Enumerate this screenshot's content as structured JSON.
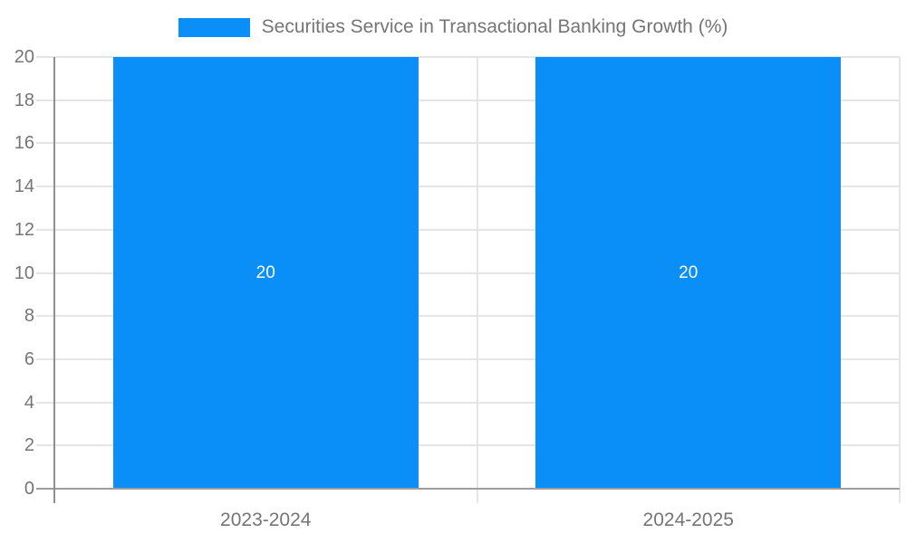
{
  "legend": {
    "label": "Securities Service in Transactional Banking Growth (%)"
  },
  "colors": {
    "bar": "#0A8FF9",
    "label_text": "#757575",
    "value_label_text": "#ffffff",
    "gridline": "#E5E5E5",
    "axis": "#9E9E9E",
    "y_axis_line": "#8F8F8F"
  },
  "chart_data": {
    "type": "bar",
    "title": "Securities Service in Transactional Banking Growth (%)",
    "categories": [
      "2023-2024",
      "2024-2025"
    ],
    "series": [
      {
        "name": "Securities Service in Transactional Banking Growth (%)",
        "color": "#0A8FF9",
        "values": [
          20,
          20
        ]
      }
    ],
    "bar_value_labels": [
      "20",
      "20"
    ],
    "xlabel": "",
    "ylabel": "",
    "ylim": [
      0,
      20
    ],
    "ytick_step": 2,
    "ytick_labels": [
      "0",
      "2",
      "4",
      "6",
      "8",
      "10",
      "12",
      "14",
      "16",
      "18",
      "20"
    ],
    "grid": true,
    "legend_position": "top-center"
  }
}
